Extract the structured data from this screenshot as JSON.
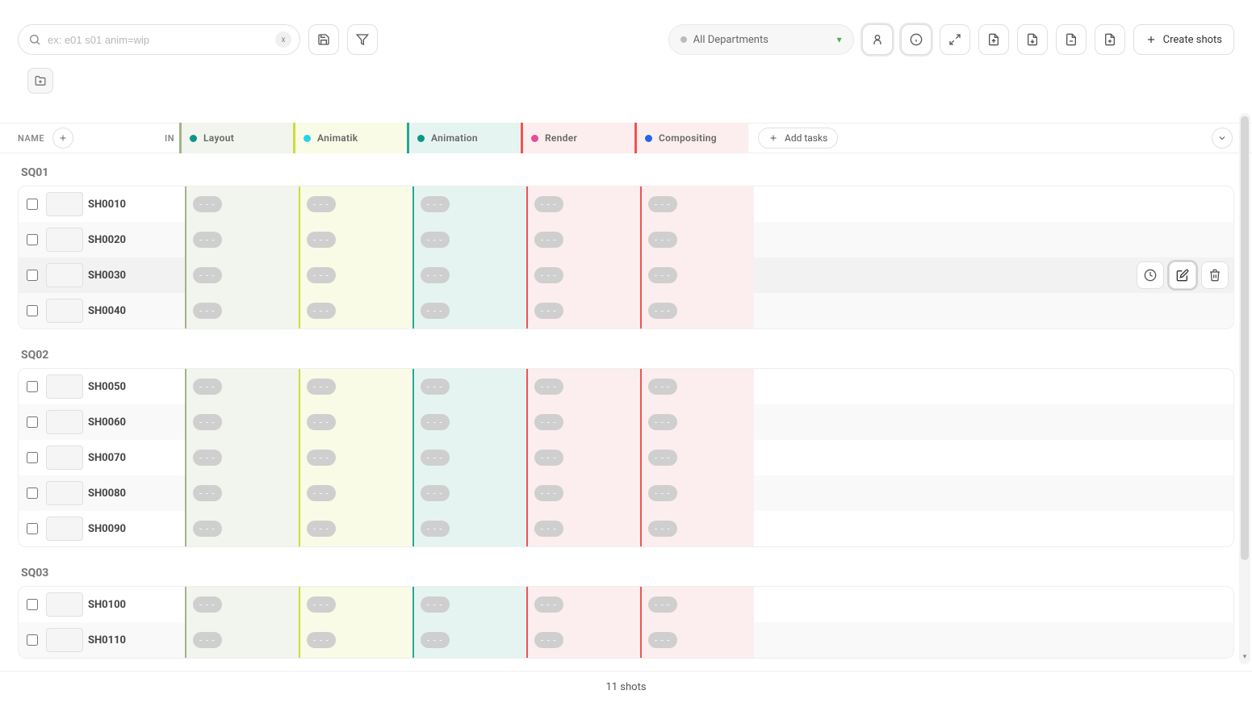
{
  "toolbar": {
    "search_placeholder": "ex: e01 s01 anim=wip",
    "search_value": "",
    "clear_label": "x",
    "department_label": "All Departments",
    "create_label": "Create shots"
  },
  "columns": {
    "name_label": "NAME",
    "in_label": "IN",
    "add_tasks_label": "Add tasks",
    "tasks": [
      {
        "label": "Layout",
        "dot": "#0d9488",
        "accent": "#a3b18a",
        "bg": "#f1f5ed"
      },
      {
        "label": "Animatik",
        "dot": "#22d3ee",
        "accent": "#cddc39",
        "bg": "#f9fbe7"
      },
      {
        "label": "Animation",
        "dot": "#0d9488",
        "accent": "#26a69a",
        "bg": "#e6f4f1"
      },
      {
        "label": "Render",
        "dot": "#ec4899",
        "accent": "#ef5350",
        "bg": "#fceeee"
      },
      {
        "label": "Compositing",
        "dot": "#2563eb",
        "accent": "#ef5350",
        "bg": "#fceeee"
      }
    ]
  },
  "status_placeholder": "- - -",
  "groups": [
    {
      "title": "SQ01",
      "rows": [
        {
          "name": "SH0010",
          "hovered": false
        },
        {
          "name": "SH0020",
          "hovered": false
        },
        {
          "name": "SH0030",
          "hovered": true
        },
        {
          "name": "SH0040",
          "hovered": false
        }
      ]
    },
    {
      "title": "SQ02",
      "rows": [
        {
          "name": "SH0050",
          "hovered": false
        },
        {
          "name": "SH0060",
          "hovered": false
        },
        {
          "name": "SH0070",
          "hovered": false
        },
        {
          "name": "SH0080",
          "hovered": false
        },
        {
          "name": "SH0090",
          "hovered": false
        }
      ]
    },
    {
      "title": "SQ03",
      "rows": [
        {
          "name": "SH0100",
          "hovered": false
        },
        {
          "name": "SH0110",
          "hovered": false
        }
      ]
    }
  ],
  "footer": {
    "count_text": "11 shots"
  },
  "icons": {
    "search": "search-icon",
    "save": "save-icon",
    "filter": "filter-icon",
    "folder": "folder-plus-icon",
    "user": "user-icon",
    "info": "info-icon",
    "expand": "expand-icon",
    "export1": "file-export-icon",
    "export2": "file-import-icon",
    "export3": "file-copy-icon",
    "export4": "file-add-icon",
    "plus": "plus-icon",
    "chevdown": "chevron-down-icon",
    "clock": "clock-icon",
    "edit": "edit-icon",
    "trash": "trash-icon"
  }
}
